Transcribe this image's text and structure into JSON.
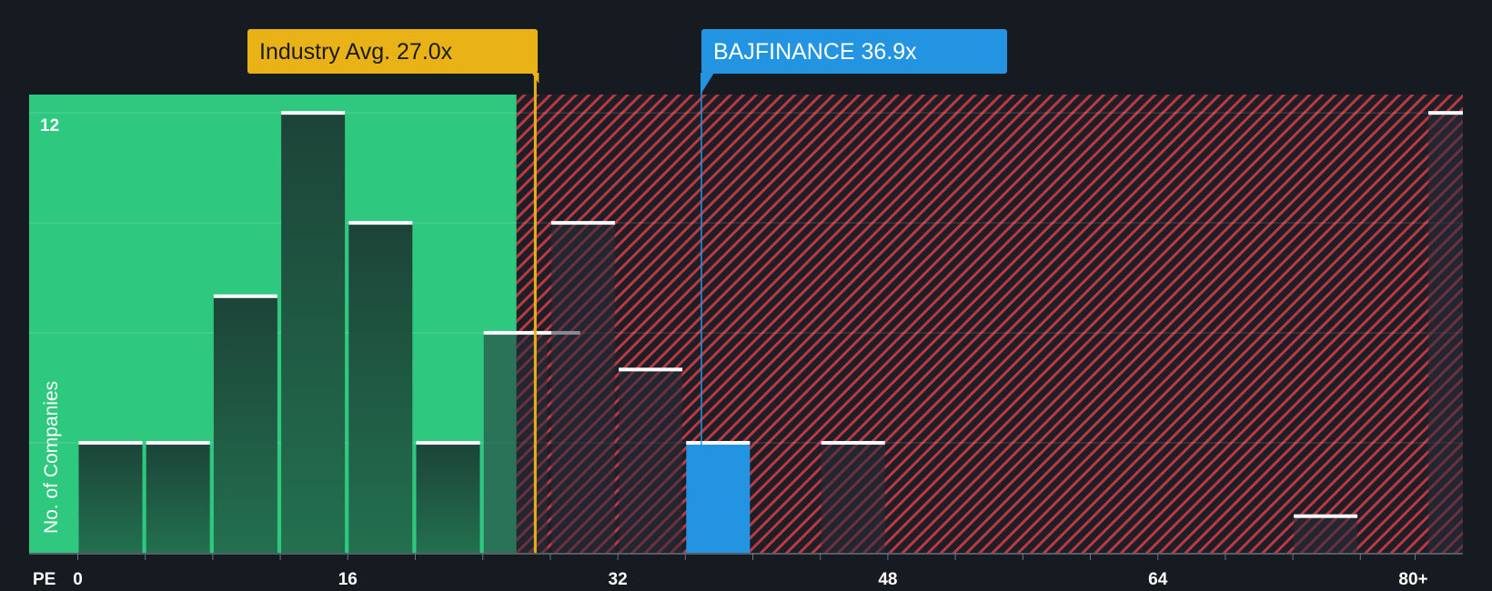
{
  "chart_data": {
    "type": "bar",
    "xlabel": "PE",
    "ylabel": "No. of Companies",
    "bin_width": 4,
    "x_ticks": [
      {
        "value": 0,
        "label": "0"
      },
      {
        "value": 16,
        "label": "16"
      },
      {
        "value": 32,
        "label": "32"
      },
      {
        "value": 48,
        "label": "48"
      },
      {
        "value": 64,
        "label": "64"
      },
      {
        "value": 80,
        "label": "80+"
      }
    ],
    "y_ticks": [
      {
        "value": 12,
        "label": "12"
      }
    ],
    "ylim": [
      0,
      12.5
    ],
    "fair_range_max_pe": 26.0,
    "bins": [
      {
        "start": 0,
        "count": 3
      },
      {
        "start": 4,
        "count": 3
      },
      {
        "start": 8,
        "count": 7
      },
      {
        "start": 12,
        "count": 12
      },
      {
        "start": 16,
        "count": 9
      },
      {
        "start": 20,
        "count": 3
      },
      {
        "start": 24,
        "count": 6
      },
      {
        "start": 28,
        "count": 9
      },
      {
        "start": 32,
        "count": 5
      },
      {
        "start": 36,
        "count": 3,
        "highlight": true
      },
      {
        "start": 44,
        "count": 3
      },
      {
        "start": 72,
        "count": 1
      },
      {
        "start": 80,
        "count": 12
      }
    ],
    "annotations": {
      "industry": {
        "label": "Industry Avg. 27.0x",
        "value": 27.0,
        "color": "#e9b217"
      },
      "company": {
        "label": "BAJFINANCE 36.9x",
        "value": 36.9,
        "color": "#2394e2"
      }
    },
    "colors": {
      "background": "#161b22",
      "fair_zone": "#2ec97f",
      "over_zone_stripe": "#c0373f",
      "bar_in_fair": "#1d4a3c",
      "bar_in_over": "#252a36",
      "bar_cap": "#ffffff",
      "highlight_bar": "#2394e2"
    }
  }
}
